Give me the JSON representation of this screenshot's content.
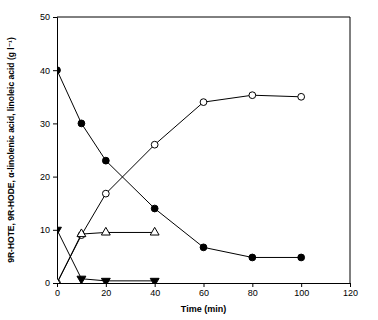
{
  "chart_data": {
    "type": "line",
    "x_label": "Time (min)",
    "y_label": "9R-HOTE, 9R-HODE, α-linolenic acid, linoleic acid (g l⁻¹)",
    "xlim": [
      0,
      120
    ],
    "xticks": [
      0,
      20,
      40,
      60,
      80,
      100,
      120
    ],
    "ylim": [
      0,
      50
    ],
    "yticks": [
      0,
      10,
      20,
      30,
      40,
      50
    ],
    "series": [
      {
        "color": "#000000",
        "marker": "circle",
        "x": [
          0,
          10,
          20,
          40,
          60,
          80,
          100
        ],
        "values": [
          40,
          30,
          23,
          14,
          6.7,
          4.8,
          4.8
        ]
      },
      {
        "color": "#000000",
        "marker": "open-circle",
        "x": [
          0,
          10,
          20,
          40,
          60,
          80,
          100
        ],
        "values": [
          0,
          9,
          16.8,
          26,
          34,
          35.3,
          35
        ]
      },
      {
        "color": "#000000",
        "marker": "triangle-down",
        "x": [
          0,
          10,
          20,
          40
        ],
        "values": [
          10,
          0.8,
          0.4,
          0.4
        ]
      },
      {
        "color": "#000000",
        "marker": "open-triangle-up",
        "x": [
          0,
          10,
          20,
          40
        ],
        "values": [
          0,
          9.2,
          9.5,
          9.5
        ]
      }
    ]
  }
}
